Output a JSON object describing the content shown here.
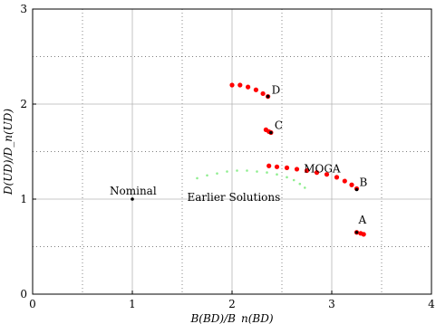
{
  "chart_data": {
    "type": "scatter",
    "xlabel": "B(BD)/B_n(BD)",
    "ylabel": "D(UD)/D_n(UD)",
    "xlim": [
      0,
      4
    ],
    "ylim": [
      0,
      3
    ],
    "xticks": [
      0,
      1,
      2,
      3,
      4
    ],
    "yticks": [
      0,
      1,
      2,
      3
    ],
    "grid": {
      "major": "solid",
      "minor": "dotted",
      "minor_step": 0.5
    },
    "series": [
      {
        "name": "MOGA",
        "color": "#ff0000",
        "points": [
          [
            2.37,
            1.35
          ],
          [
            2.45,
            1.34
          ],
          [
            2.55,
            1.33
          ],
          [
            2.65,
            1.315
          ],
          [
            2.75,
            1.3
          ],
          [
            2.85,
            1.28
          ],
          [
            2.95,
            1.26
          ],
          [
            3.05,
            1.23
          ],
          [
            3.13,
            1.19
          ],
          [
            3.2,
            1.15
          ],
          [
            3.25,
            1.11
          ],
          [
            2.0,
            2.2
          ],
          [
            2.08,
            2.2
          ],
          [
            2.16,
            2.18
          ],
          [
            2.24,
            2.15
          ],
          [
            2.31,
            2.11
          ],
          [
            2.36,
            2.08
          ],
          [
            2.34,
            1.73
          ],
          [
            2.37,
            1.71
          ],
          [
            2.39,
            1.7
          ],
          [
            3.25,
            0.65
          ],
          [
            3.29,
            0.64
          ],
          [
            3.32,
            0.63
          ]
        ]
      },
      {
        "name": "Earlier Solutions",
        "color": "#90ee90",
        "points": [
          [
            1.65,
            1.22
          ],
          [
            1.75,
            1.25
          ],
          [
            1.85,
            1.27
          ],
          [
            1.95,
            1.29
          ],
          [
            2.05,
            1.3
          ],
          [
            2.15,
            1.3
          ],
          [
            2.25,
            1.29
          ],
          [
            2.35,
            1.28
          ],
          [
            2.45,
            1.26
          ],
          [
            2.55,
            1.23
          ],
          [
            2.62,
            1.2
          ],
          [
            2.68,
            1.16
          ],
          [
            2.73,
            1.12
          ]
        ]
      }
    ],
    "points_labeled": [
      {
        "label": "Nominal",
        "x": 1.0,
        "y": 1.0
      },
      {
        "label": "A",
        "x": 3.25,
        "y": 0.65
      },
      {
        "label": "B",
        "x": 3.25,
        "y": 1.1
      },
      {
        "label": "C",
        "x": 2.39,
        "y": 1.7
      },
      {
        "label": "D",
        "x": 2.36,
        "y": 2.08
      }
    ],
    "annotations": [
      {
        "text": "MOGA",
        "x": 2.72,
        "y": 1.28
      },
      {
        "text": "Earlier Solutions",
        "x": 1.55,
        "y": 0.98
      }
    ]
  }
}
